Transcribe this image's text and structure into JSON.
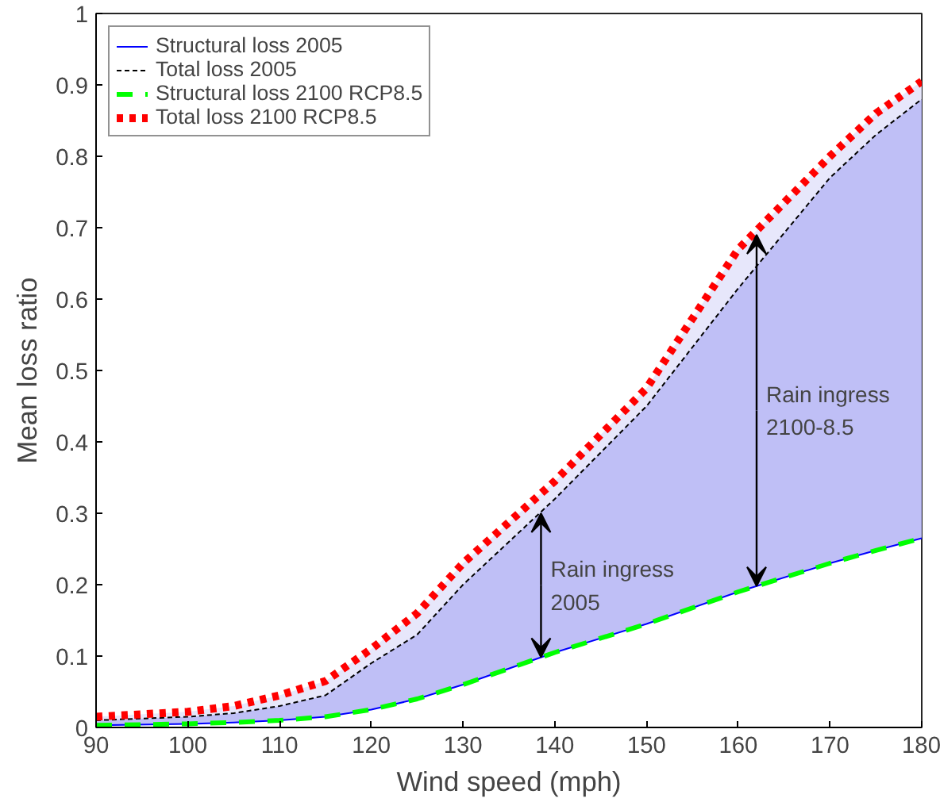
{
  "chart_data": {
    "type": "line",
    "xlabel": "Wind speed (mph)",
    "ylabel": "Mean loss ratio",
    "x": [
      90,
      100,
      105,
      110,
      115,
      120,
      125,
      130,
      140,
      150,
      160,
      170,
      175,
      180
    ],
    "series": [
      {
        "name": "Structural loss 2005",
        "color": "#0000ff",
        "line_style": "solid",
        "values": [
          0.003,
          0.005,
          0.007,
          0.01,
          0.015,
          0.025,
          0.04,
          0.06,
          0.105,
          0.145,
          0.19,
          0.23,
          0.248,
          0.265
        ]
      },
      {
        "name": "Total loss 2005",
        "color": "#000000",
        "line_style": "dashed",
        "values": [
          0.01,
          0.015,
          0.02,
          0.03,
          0.045,
          0.09,
          0.13,
          0.2,
          0.32,
          0.45,
          0.615,
          0.77,
          0.83,
          0.88
        ],
        "lower": [
          0.003,
          0.005,
          0.007,
          0.01,
          0.015,
          0.025,
          0.04,
          0.06,
          0.105,
          0.145,
          0.19,
          0.23,
          0.248,
          0.265
        ],
        "upper": [
          0.01,
          0.015,
          0.02,
          0.03,
          0.045,
          0.09,
          0.13,
          0.2,
          0.32,
          0.45,
          0.615,
          0.77,
          0.83,
          0.88
        ]
      },
      {
        "name": "Structural loss 2100 RCP8.5",
        "color": "#00ff00",
        "line_style": "dashed",
        "values": [
          0.003,
          0.005,
          0.007,
          0.01,
          0.015,
          0.025,
          0.04,
          0.06,
          0.105,
          0.145,
          0.19,
          0.23,
          0.248,
          0.265
        ]
      },
      {
        "name": "Total loss 2100 RCP8.5",
        "color": "#ff0000",
        "line_style": "dotted",
        "values": [
          0.015,
          0.022,
          0.03,
          0.045,
          0.065,
          0.11,
          0.16,
          0.23,
          0.345,
          0.475,
          0.67,
          0.8,
          0.86,
          0.905
        ],
        "lower": [
          0.01,
          0.015,
          0.02,
          0.03,
          0.045,
          0.09,
          0.13,
          0.2,
          0.32,
          0.45,
          0.615,
          0.77,
          0.83,
          0.88
        ],
        "upper": [
          0.015,
          0.022,
          0.03,
          0.045,
          0.065,
          0.11,
          0.16,
          0.23,
          0.345,
          0.475,
          0.67,
          0.8,
          0.86,
          0.905
        ]
      }
    ],
    "annotations": [
      {
        "text": "Rain ingress\n2005",
        "x": 138.5,
        "y": 0.3
      },
      {
        "text": "Rain ingress\n2100-8.5",
        "x": 162,
        "y": 0.69
      }
    ],
    "xlim": [
      90,
      180
    ],
    "xticks": [
      90,
      100,
      110,
      120,
      130,
      140,
      150,
      160,
      170,
      180
    ],
    "ylim": [
      0,
      1
    ],
    "yticks": [
      0,
      0.1,
      0.2,
      0.3,
      0.4,
      0.5,
      0.6,
      0.7,
      0.8,
      0.9,
      1
    ],
    "grid": false,
    "legend": "top left"
  }
}
